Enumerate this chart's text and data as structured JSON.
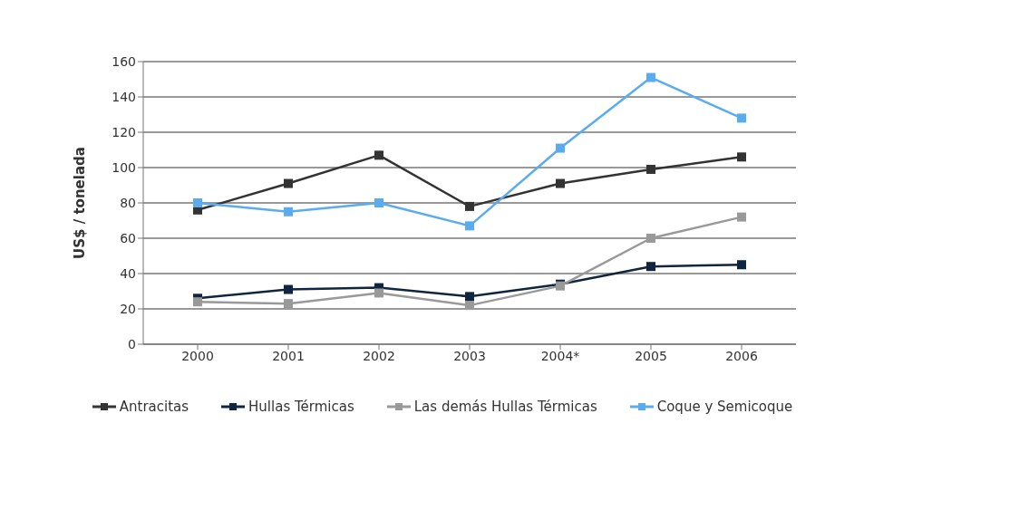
{
  "chart_data": {
    "type": "line",
    "ylabel": "US$ / tonelada",
    "categories": [
      "2000",
      "2001",
      "2002",
      "2003",
      "2004*",
      "2005",
      "2006"
    ],
    "series": [
      {
        "name": "Antracitas",
        "color": "#333333",
        "values": [
          76,
          91,
          107,
          78,
          91,
          99,
          106
        ]
      },
      {
        "name": "Hullas Térmicas",
        "color": "#10253f",
        "values": [
          26,
          31,
          32,
          27,
          34,
          44,
          45
        ]
      },
      {
        "name": "Las demás Hullas Térmicas",
        "color": "#999999",
        "values": [
          24,
          23,
          29,
          22,
          33,
          60,
          72
        ]
      },
      {
        "name": "Coque y Semicoque",
        "color": "#5aabf0",
        "values": [
          80,
          75,
          80,
          67,
          111,
          151,
          128
        ]
      }
    ],
    "ylim": [
      0,
      160
    ],
    "yticks": [
      0,
      20,
      40,
      60,
      80,
      100,
      120,
      140,
      160
    ],
    "grid": "y",
    "legend": "bottom",
    "marker": "square",
    "line_style": "solid"
  }
}
